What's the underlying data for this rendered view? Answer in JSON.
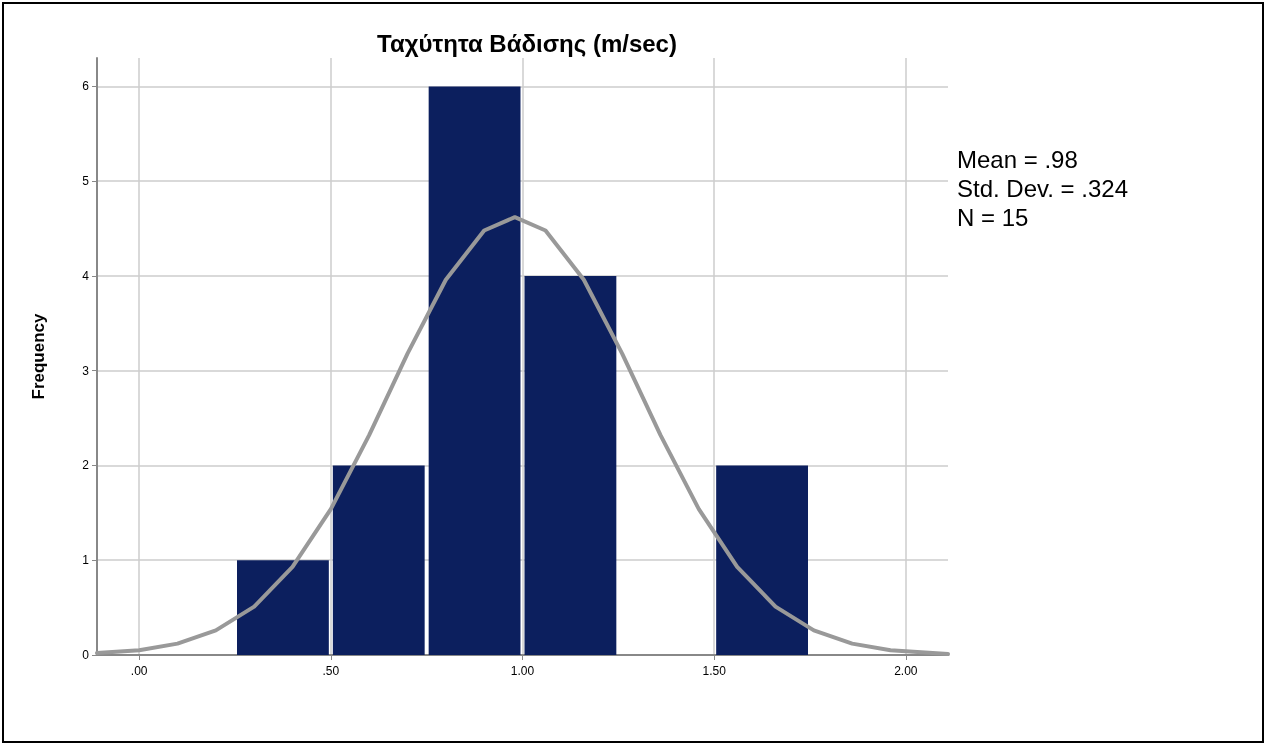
{
  "chart_data": {
    "type": "histogram",
    "title": "Ταχύτητα Βάδισης (m/sec)",
    "ylabel": "Frequency",
    "bins": [
      0.25,
      0.5,
      0.75,
      1.0,
      1.25,
      1.5,
      1.75
    ],
    "values": [
      1,
      2,
      6,
      4,
      0,
      2
    ],
    "color": "#0c1f5e",
    "series": [
      {
        "type": "line",
        "color": "#999999",
        "x": [
          -0.11,
          0.0,
          0.1,
          0.2,
          0.3,
          0.4,
          0.5,
          0.6,
          0.7,
          0.8,
          0.9,
          0.98,
          1.06,
          1.16,
          1.26,
          1.36,
          1.46,
          1.56,
          1.66,
          1.76,
          1.86,
          1.96,
          2.07,
          2.11
        ],
        "values": [
          0.02,
          0.05,
          0.12,
          0.26,
          0.51,
          0.93,
          1.54,
          2.32,
          3.18,
          3.96,
          4.48,
          4.62,
          4.48,
          3.96,
          3.18,
          2.32,
          1.54,
          0.93,
          0.51,
          0.26,
          0.12,
          0.05,
          0.02,
          0.01
        ]
      }
    ],
    "xlim": [
      -0.11,
      2.11
    ],
    "xticks": [
      {
        "value": 0,
        "label": ".00"
      },
      {
        "value": 0.5,
        "label": ".50"
      },
      {
        "value": 1.0,
        "label": "1.00"
      },
      {
        "value": 1.5,
        "label": "1.50"
      },
      {
        "value": 2.0,
        "label": "2.00"
      }
    ],
    "ylim": [
      0,
      6.3
    ],
    "yticks": [
      0,
      1,
      2,
      3,
      4,
      5,
      6
    ],
    "grid": true,
    "annotations": [
      "Mean = .98",
      "Std. Dev. = .324",
      "N = 15"
    ]
  }
}
